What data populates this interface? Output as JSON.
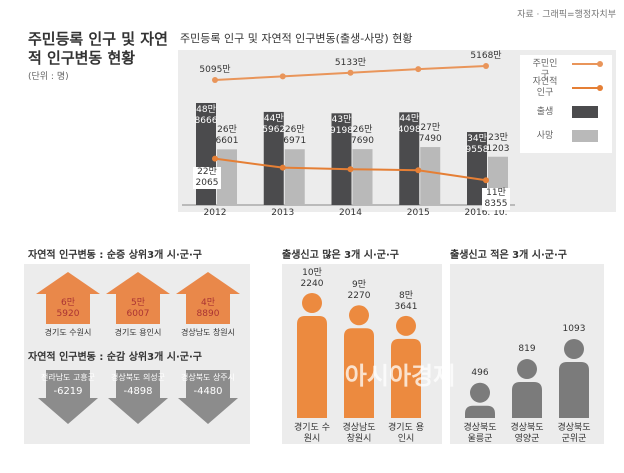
{
  "header": {
    "title": "주민등록 인구 및 자연적 인구변동 현황",
    "unit": "(단위 : 명)",
    "source": "자료 · 그래픽=행정자치부",
    "watermark": "아시아경제"
  },
  "chart_data": [
    {
      "type": "bar_line",
      "title": "주민등록 인구 및 자연적 인구변동(출생-사망) 현황",
      "categories": [
        "2012",
        "2013",
        "2014",
        "2015",
        "2016. 10."
      ],
      "series": [
        {
          "name": "주민인구",
          "type": "line",
          "color": "#e9955a",
          "values": [
            50950000,
            51140000,
            51330000,
            51520000,
            51680000
          ],
          "value_labels": [
            "5095만",
            null,
            "5133만",
            null,
            "5168만"
          ]
        },
        {
          "name": "자연적 인구",
          "type": "line",
          "color": "#e57f35",
          "values": [
            222065,
            178991,
            171508,
            166608,
            118355
          ],
          "value_labels": [
            "22만 2065",
            null,
            null,
            null,
            "11만 8355"
          ]
        },
        {
          "name": "출생",
          "type": "bar",
          "color": "#4b4b4d",
          "values": [
            488666,
            445962,
            439198,
            444098,
            349558
          ],
          "value_labels": [
            "48만 8666",
            "44만 5962",
            "43만 9198",
            "44만 4098",
            "34만 9558"
          ]
        },
        {
          "name": "사망",
          "type": "bar",
          "color": "#b9b9b9",
          "values": [
            266601,
            266971,
            267690,
            277490,
            231203
          ],
          "value_labels": [
            "26만 6601",
            "26만 6971",
            "26만 7690",
            "27만 7490",
            "23만 1203"
          ]
        }
      ]
    },
    {
      "type": "arrow",
      "direction": "up",
      "color": "#e9884a",
      "title": "자연적 인구변동 : 순증 상위3개 시·군·구",
      "categories": [
        "경기도 수원시",
        "경기도 용인시",
        "경상남도 창원시"
      ],
      "values": [
        65920,
        56007,
        48890
      ],
      "value_labels": [
        "6만 5920",
        "5만 6007",
        "4만 8890"
      ]
    },
    {
      "type": "arrow",
      "direction": "down",
      "color": "#8c8c8c",
      "title": "자연적 인구변동 : 순감 상위3개 시·군·구",
      "categories": [
        "전라남도 고흥군",
        "경상북도 의성군",
        "경상북도 상주시"
      ],
      "values": [
        -6219,
        -4898,
        -4480
      ]
    },
    {
      "type": "pictogram",
      "color": "#ec8a3f",
      "title": "출생신고 많은 3개 시·군·구",
      "categories": [
        "경기도 수원시",
        "경상남도 창원시",
        "경기도 용인시"
      ],
      "values": [
        102240,
        92270,
        83641
      ],
      "value_labels": [
        "10만 2240",
        "9만 2270",
        "8만 3641"
      ]
    },
    {
      "type": "pictogram",
      "color": "#7b7b7b",
      "title": "출생신고 적은 3개 시·군·구",
      "categories": [
        "경상북도 울릉군",
        "경상북도 영양군",
        "경상북도 군위군"
      ],
      "values": [
        496,
        819,
        1093
      ]
    }
  ]
}
